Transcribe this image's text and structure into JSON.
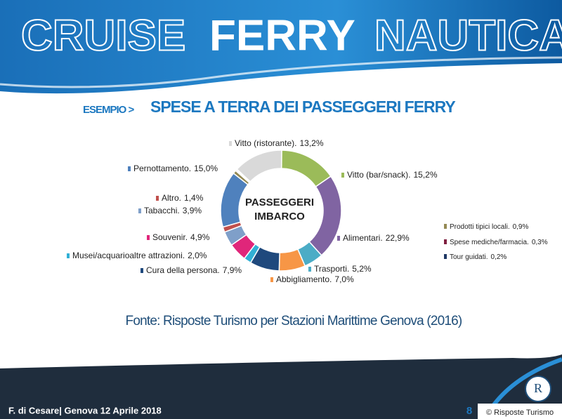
{
  "header": {
    "words": [
      "CRUISE",
      "FERRY",
      "NAUTICA"
    ]
  },
  "subtitle": {
    "prefix": "ESEMPIO >",
    "title": "SPESE A TERRA DEI PASSEGGERI FERRY"
  },
  "chart_data": {
    "type": "pie",
    "center_label": [
      "PASSEGGERI",
      "IMBARCO"
    ],
    "categories": [
      "Vitto (ristorante).",
      "Vitto (bar/snack).",
      "Alimentari.",
      "Trasporti.",
      "Abbigliamento.",
      "Cura della persona.",
      "Musei/acquarioaltre attrazioni.",
      "Souvenir.",
      "Tabacchi.",
      "Altro.",
      "Pernottamento.",
      "Prodotti tipici locali.",
      "Spese mediche/farmacia.",
      "Tour guidati."
    ],
    "values": [
      13.2,
      15.2,
      22.9,
      5.2,
      7.0,
      7.9,
      2.0,
      4.9,
      3.9,
      1.4,
      15.0,
      0.9,
      0.3,
      0.2
    ],
    "value_labels": [
      "13,2%",
      "15,2%",
      "22,9%",
      "5,2%",
      "7,0%",
      "7,9%",
      "2,0%",
      "4,9%",
      "3,9%",
      "1,4%",
      "15,0%",
      "0,9%",
      "0,3%",
      "0,2%"
    ],
    "colors": [
      "#d9d9d9",
      "#9bbb59",
      "#8064a2",
      "#4bacc6",
      "#f79646",
      "#1f497d",
      "#31b0d5",
      "#e0267a",
      "#7f9fc9",
      "#c0504d",
      "#4f81bd",
      "#948a54",
      "#7f2040",
      "#1f3864"
    ]
  },
  "source": "Fonte: Risposte Turismo per Stazioni Marittime Genova (2016)",
  "footer": {
    "author": "F. di Cesare| Genova 12 Aprile 2018",
    "page": "8",
    "copyright": "© Risposte Turismo",
    "logo": "R"
  }
}
